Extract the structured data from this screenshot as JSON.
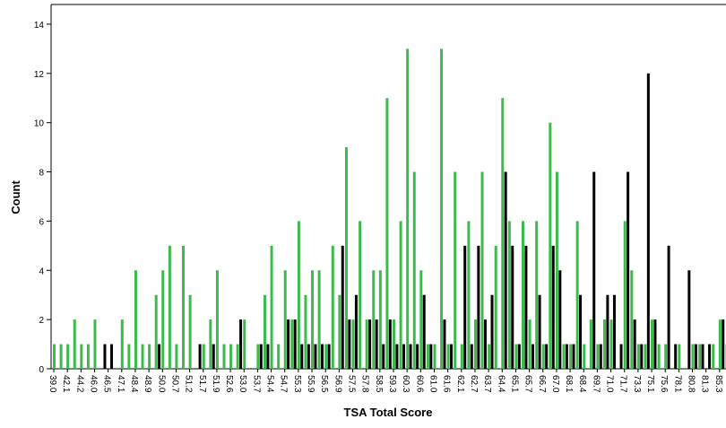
{
  "chart_data": {
    "type": "bar",
    "x_label": "TSA Total Score",
    "y_label": "Count",
    "categories": [
      "39.0",
      null,
      "42.1",
      null,
      "44.2",
      null,
      "46.0",
      null,
      "46.5",
      null,
      "47.1",
      null,
      "48.4",
      null,
      "48.9",
      null,
      "50.0",
      null,
      "50.7",
      null,
      "51.2",
      null,
      "51.7",
      null,
      "51.9",
      null,
      "52.6",
      null,
      "53.0",
      null,
      "53.7",
      null,
      "54.4",
      null,
      "54.7",
      null,
      "55.3",
      null,
      "55.9",
      null,
      "56.5",
      null,
      "56.9",
      null,
      "57.5",
      null,
      "57.8",
      null,
      "58.5",
      null,
      "59.3",
      null,
      "60.3",
      null,
      "60.6",
      null,
      "61.0",
      null,
      "61.6",
      null,
      "62.1",
      null,
      "62.7",
      null,
      "63.7",
      null,
      "64.4",
      null,
      "65.1",
      null,
      "65.7",
      null,
      "66.7",
      null,
      "67.0",
      null,
      "68.1",
      null,
      "68.4",
      null,
      "69.7",
      null,
      "71.0",
      null,
      "71.7",
      null,
      "73.3",
      null,
      "75.1",
      null,
      "75.6",
      null,
      "78.1",
      null,
      "80.8",
      null,
      "81.3",
      null,
      "85.3",
      null
    ],
    "series": [
      {
        "color": "#3dba4e",
        "values": [
          1,
          1,
          1,
          2,
          1,
          1,
          2,
          0,
          0,
          0,
          2,
          1,
          4,
          1,
          1,
          3,
          4,
          5,
          1,
          5,
          3,
          0,
          1,
          2,
          4,
          1,
          1,
          1,
          2,
          0,
          1,
          3,
          5,
          1,
          4,
          2,
          6,
          3,
          4,
          4,
          1,
          5,
          3,
          9,
          2,
          6,
          2,
          4,
          4,
          11,
          2,
          6,
          13,
          8,
          4,
          1,
          1,
          13,
          1,
          8,
          1,
          6,
          2,
          8,
          1,
          5,
          11,
          6,
          1,
          6,
          2,
          6,
          1,
          10,
          8,
          1,
          1,
          6,
          1,
          2,
          1,
          2,
          2,
          0,
          6,
          4,
          1,
          1,
          2,
          1,
          1,
          0,
          1,
          0,
          1,
          1,
          0,
          1,
          2,
          1
        ]
      },
      {
        "color": "#000000",
        "values": [
          0,
          0,
          0,
          0,
          0,
          0,
          0,
          1,
          1,
          0,
          0,
          0,
          0,
          0,
          0,
          1,
          0,
          0,
          0,
          0,
          0,
          1,
          0,
          1,
          0,
          0,
          0,
          2,
          0,
          0,
          1,
          1,
          0,
          0,
          2,
          2,
          1,
          1,
          1,
          1,
          1,
          0,
          5,
          2,
          3,
          0,
          2,
          2,
          1,
          2,
          1,
          1,
          1,
          1,
          3,
          1,
          0,
          2,
          1,
          0,
          5,
          1,
          5,
          2,
          3,
          0,
          8,
          5,
          1,
          5,
          1,
          3,
          1,
          5,
          4,
          1,
          1,
          3,
          0,
          8,
          1,
          3,
          3,
          1,
          8,
          2,
          1,
          12,
          2,
          0,
          5,
          1,
          0,
          4,
          1,
          1,
          1,
          0,
          2,
          0
        ]
      }
    ],
    "ylim": [
      0,
      14.8
    ],
    "yticks": [
      0,
      2,
      4,
      6,
      8,
      10,
      12,
      14
    ]
  }
}
